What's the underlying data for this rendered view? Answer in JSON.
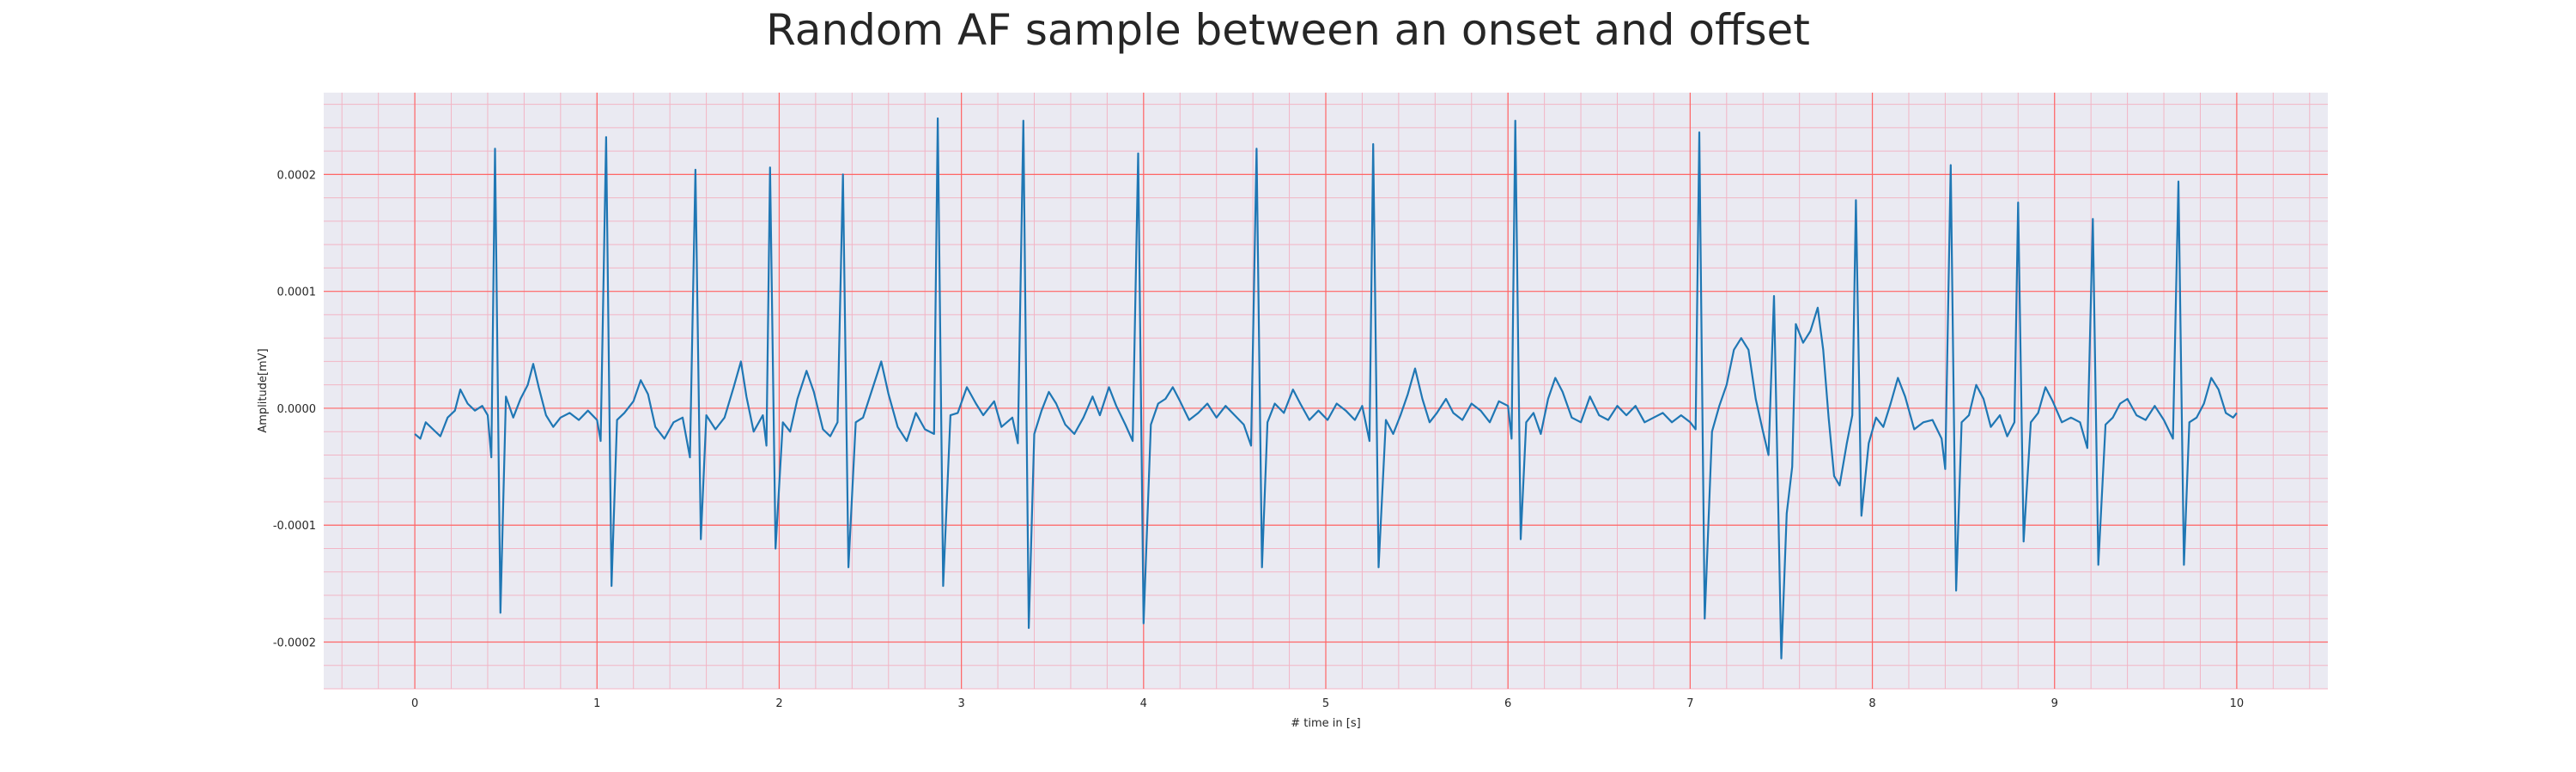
{
  "chart_data": {
    "type": "line",
    "title": "Random AF sample between an onset and offset",
    "xlabel": "# time in [s]",
    "ylabel": "Amplitude[mV]",
    "xlim": [
      -0.5,
      10.5
    ],
    "ylim": [
      -0.00024,
      0.00027
    ],
    "x_ticks": [
      0,
      1,
      2,
      3,
      4,
      5,
      6,
      7,
      8,
      9,
      10
    ],
    "x_tick_labels": [
      "0",
      "1",
      "2",
      "3",
      "4",
      "5",
      "6",
      "7",
      "8",
      "9",
      "10"
    ],
    "y_ticks": [
      -0.0002,
      -0.0001,
      0.0,
      0.0001,
      0.0002
    ],
    "y_tick_labels": [
      "-0.0002",
      "-0.0001",
      "0.0000",
      "0.0001",
      "0.0002"
    ],
    "grid": true,
    "minor_grid": true,
    "colors": {
      "line": "#1f77b4",
      "plot_bg": "#eaeaf2",
      "major_grid": "#ff6666",
      "minor_grid": "#f2b5c5"
    },
    "series": [
      {
        "points": [
          [
            0.0,
            -2.2e-05
          ],
          [
            0.03,
            -2.6e-05
          ],
          [
            0.06,
            -1.2e-05
          ],
          [
            0.1,
            -1.8e-05
          ],
          [
            0.14,
            -2.4e-05
          ],
          [
            0.18,
            -8e-06
          ],
          [
            0.22,
            -2e-06
          ],
          [
            0.25,
            1.6e-05
          ],
          [
            0.29,
            4e-06
          ],
          [
            0.33,
            -2e-06
          ],
          [
            0.37,
            2e-06
          ],
          [
            0.4,
            -6e-06
          ],
          [
            0.42,
            -4.2e-05
          ],
          [
            0.44,
            0.000222
          ],
          [
            0.47,
            -0.000175
          ],
          [
            0.5,
            1e-05
          ],
          [
            0.54,
            -8e-06
          ],
          [
            0.58,
            8e-06
          ],
          [
            0.62,
            2e-05
          ],
          [
            0.65,
            3.8e-05
          ],
          [
            0.68,
            1.8e-05
          ],
          [
            0.72,
            -6e-06
          ],
          [
            0.76,
            -1.6e-05
          ],
          [
            0.8,
            -8e-06
          ],
          [
            0.85,
            -4e-06
          ],
          [
            0.9,
            -1e-05
          ],
          [
            0.95,
            -2e-06
          ],
          [
            1.0,
            -1e-05
          ],
          [
            1.02,
            -2.8e-05
          ],
          [
            1.05,
            0.000232
          ],
          [
            1.08,
            -0.000152
          ],
          [
            1.11,
            -1e-05
          ],
          [
            1.15,
            -4e-06
          ],
          [
            1.2,
            6e-06
          ],
          [
            1.24,
            2.4e-05
          ],
          [
            1.28,
            1.2e-05
          ],
          [
            1.32,
            -1.6e-05
          ],
          [
            1.37,
            -2.6e-05
          ],
          [
            1.42,
            -1.2e-05
          ],
          [
            1.47,
            -8e-06
          ],
          [
            1.51,
            -4.2e-05
          ],
          [
            1.54,
            0.000204
          ],
          [
            1.57,
            -0.000112
          ],
          [
            1.6,
            -6e-06
          ],
          [
            1.65,
            -1.8e-05
          ],
          [
            1.7,
            -8e-06
          ],
          [
            1.75,
            1.8e-05
          ],
          [
            1.79,
            4e-05
          ],
          [
            1.82,
            1e-05
          ],
          [
            1.86,
            -2e-05
          ],
          [
            1.91,
            -6e-06
          ],
          [
            1.93,
            -3.2e-05
          ],
          [
            1.95,
            0.000206
          ],
          [
            1.98,
            -0.00012
          ],
          [
            2.02,
            -1.2e-05
          ],
          [
            2.06,
            -2e-05
          ],
          [
            2.1,
            8e-06
          ],
          [
            2.15,
            3.2e-05
          ],
          [
            2.19,
            1.4e-05
          ],
          [
            2.24,
            -1.8e-05
          ],
          [
            2.28,
            -2.4e-05
          ],
          [
            2.32,
            -1.2e-05
          ],
          [
            2.35,
            0.0002
          ],
          [
            2.38,
            -0.000136
          ],
          [
            2.42,
            -1.2e-05
          ],
          [
            2.46,
            -8e-06
          ],
          [
            2.51,
            1.6e-05
          ],
          [
            2.56,
            4e-05
          ],
          [
            2.6,
            1.2e-05
          ],
          [
            2.65,
            -1.6e-05
          ],
          [
            2.7,
            -2.8e-05
          ],
          [
            2.75,
            -4e-06
          ],
          [
            2.8,
            -1.8e-05
          ],
          [
            2.85,
            -2.2e-05
          ],
          [
            2.87,
            0.000248
          ],
          [
            2.9,
            -0.000152
          ],
          [
            2.94,
            -6e-06
          ],
          [
            2.98,
            -4e-06
          ],
          [
            3.03,
            1.8e-05
          ],
          [
            3.08,
            4e-06
          ],
          [
            3.12,
            -6e-06
          ],
          [
            3.18,
            6e-06
          ],
          [
            3.22,
            -1.6e-05
          ],
          [
            3.28,
            -8e-06
          ],
          [
            3.31,
            -3e-05
          ],
          [
            3.34,
            0.000246
          ],
          [
            3.37,
            -0.000188
          ],
          [
            3.4,
            -2.2e-05
          ],
          [
            3.44,
            -2e-06
          ],
          [
            3.48,
            1.4e-05
          ],
          [
            3.52,
            4e-06
          ],
          [
            3.57,
            -1.4e-05
          ],
          [
            3.62,
            -2.2e-05
          ],
          [
            3.67,
            -8e-06
          ],
          [
            3.72,
            1e-05
          ],
          [
            3.76,
            -6e-06
          ],
          [
            3.81,
            1.8e-05
          ],
          [
            3.85,
            2e-06
          ],
          [
            3.9,
            -1.4e-05
          ],
          [
            3.94,
            -2.8e-05
          ],
          [
            3.97,
            0.000218
          ],
          [
            4.0,
            -0.000184
          ],
          [
            4.04,
            -1.4e-05
          ],
          [
            4.08,
            4e-06
          ],
          [
            4.12,
            8e-06
          ],
          [
            4.16,
            1.8e-05
          ],
          [
            4.2,
            6e-06
          ],
          [
            4.25,
            -1e-05
          ],
          [
            4.3,
            -4e-06
          ],
          [
            4.35,
            4e-06
          ],
          [
            4.4,
            -8e-06
          ],
          [
            4.45,
            2e-06
          ],
          [
            4.5,
            -6e-06
          ],
          [
            4.55,
            -1.4e-05
          ],
          [
            4.59,
            -3.2e-05
          ],
          [
            4.62,
            0.000222
          ],
          [
            4.65,
            -0.000136
          ],
          [
            4.68,
            -1.2e-05
          ],
          [
            4.72,
            4e-06
          ],
          [
            4.77,
            -4e-06
          ],
          [
            4.82,
            1.6e-05
          ],
          [
            4.86,
            4e-06
          ],
          [
            4.91,
            -1e-05
          ],
          [
            4.96,
            -2e-06
          ],
          [
            5.01,
            -1e-05
          ],
          [
            5.06,
            4e-06
          ],
          [
            5.11,
            -2e-06
          ],
          [
            5.16,
            -1e-05
          ],
          [
            5.2,
            2e-06
          ],
          [
            5.24,
            -2.8e-05
          ],
          [
            5.26,
            0.000226
          ],
          [
            5.29,
            -0.000136
          ],
          [
            5.33,
            -1e-05
          ],
          [
            5.37,
            -2.2e-05
          ],
          [
            5.41,
            -6e-06
          ],
          [
            5.45,
            1.2e-05
          ],
          [
            5.49,
            3.4e-05
          ],
          [
            5.53,
            8e-06
          ],
          [
            5.57,
            -1.2e-05
          ],
          [
            5.61,
            -4e-06
          ],
          [
            5.66,
            8e-06
          ],
          [
            5.7,
            -4e-06
          ],
          [
            5.75,
            -1e-05
          ],
          [
            5.8,
            4e-06
          ],
          [
            5.85,
            -2e-06
          ],
          [
            5.9,
            -1.2e-05
          ],
          [
            5.95,
            6e-06
          ],
          [
            6.0,
            2e-06
          ],
          [
            6.02,
            -2.6e-05
          ],
          [
            6.04,
            0.000246
          ],
          [
            6.07,
            -0.000112
          ],
          [
            6.1,
            -1.2e-05
          ],
          [
            6.14,
            -4e-06
          ],
          [
            6.18,
            -2.2e-05
          ],
          [
            6.22,
            8e-06
          ],
          [
            6.26,
            2.6e-05
          ],
          [
            6.3,
            1.4e-05
          ],
          [
            6.35,
            -8e-06
          ],
          [
            6.4,
            -1.2e-05
          ],
          [
            6.45,
            1e-05
          ],
          [
            6.5,
            -6e-06
          ],
          [
            6.55,
            -1e-05
          ],
          [
            6.6,
            2e-06
          ],
          [
            6.65,
            -6e-06
          ],
          [
            6.7,
            2e-06
          ],
          [
            6.75,
            -1.2e-05
          ],
          [
            6.8,
            -8e-06
          ],
          [
            6.85,
            -4e-06
          ],
          [
            6.9,
            -1.2e-05
          ],
          [
            6.95,
            -6e-06
          ],
          [
            7.0,
            -1.2e-05
          ],
          [
            7.03,
            -1.8e-05
          ],
          [
            7.05,
            0.000236
          ],
          [
            7.08,
            -0.00018
          ],
          [
            7.12,
            -2e-05
          ],
          [
            7.16,
            2e-06
          ],
          [
            7.2,
            2e-05
          ],
          [
            7.24,
            5e-05
          ],
          [
            7.28,
            6e-05
          ],
          [
            7.32,
            5e-05
          ],
          [
            7.36,
            8e-06
          ],
          [
            7.4,
            -2e-05
          ],
          [
            7.43,
            -4e-05
          ],
          [
            7.46,
            9.6e-05
          ],
          [
            7.5,
            -0.000214
          ],
          [
            7.53,
            -9e-05
          ],
          [
            7.56,
            -5e-05
          ],
          [
            7.58,
            7.2e-05
          ],
          [
            7.62,
            5.6e-05
          ],
          [
            7.66,
            6.6e-05
          ],
          [
            7.7,
            8.6e-05
          ],
          [
            7.73,
            5e-05
          ],
          [
            7.76,
            -8e-06
          ],
          [
            7.79,
            -5.8e-05
          ],
          [
            7.82,
            -6.6e-05
          ],
          [
            7.86,
            -3e-05
          ],
          [
            7.89,
            -6e-06
          ],
          [
            7.91,
            0.000178
          ],
          [
            7.94,
            -9.2e-05
          ],
          [
            7.98,
            -3e-05
          ],
          [
            8.02,
            -8e-06
          ],
          [
            8.06,
            -1.6e-05
          ],
          [
            8.1,
            4e-06
          ],
          [
            8.14,
            2.6e-05
          ],
          [
            8.18,
            1e-05
          ],
          [
            8.23,
            -1.8e-05
          ],
          [
            8.28,
            -1.2e-05
          ],
          [
            8.33,
            -1e-05
          ],
          [
            8.38,
            -2.6e-05
          ],
          [
            8.4,
            -5.2e-05
          ],
          [
            8.43,
            0.000208
          ],
          [
            8.46,
            -0.000156
          ],
          [
            8.49,
            -1.2e-05
          ],
          [
            8.53,
            -6e-06
          ],
          [
            8.57,
            2e-05
          ],
          [
            8.61,
            8e-06
          ],
          [
            8.65,
            -1.6e-05
          ],
          [
            8.7,
            -6e-06
          ],
          [
            8.74,
            -2.4e-05
          ],
          [
            8.78,
            -1.2e-05
          ],
          [
            8.8,
            0.000176
          ],
          [
            8.83,
            -0.000114
          ],
          [
            8.87,
            -1.2e-05
          ],
          [
            8.91,
            -4e-06
          ],
          [
            8.95,
            1.8e-05
          ],
          [
            8.99,
            6e-06
          ],
          [
            9.04,
            -1.2e-05
          ],
          [
            9.09,
            -8e-06
          ],
          [
            9.14,
            -1.2e-05
          ],
          [
            9.18,
            -3.4e-05
          ],
          [
            9.21,
            0.000162
          ],
          [
            9.24,
            -0.000134
          ],
          [
            9.28,
            -1.4e-05
          ],
          [
            9.32,
            -8e-06
          ],
          [
            9.36,
            4e-06
          ],
          [
            9.4,
            8e-06
          ],
          [
            9.45,
            -6e-06
          ],
          [
            9.5,
            -1e-05
          ],
          [
            9.55,
            2e-06
          ],
          [
            9.6,
            -1e-05
          ],
          [
            9.65,
            -2.6e-05
          ],
          [
            9.68,
            0.000194
          ],
          [
            9.71,
            -0.000134
          ],
          [
            9.74,
            -1.2e-05
          ],
          [
            9.78,
            -8e-06
          ],
          [
            9.82,
            4e-06
          ],
          [
            9.86,
            2.6e-05
          ],
          [
            9.9,
            1.6e-05
          ],
          [
            9.94,
            -4e-06
          ],
          [
            9.98,
            -8e-06
          ],
          [
            10.0,
            -4e-06
          ]
        ]
      }
    ]
  }
}
